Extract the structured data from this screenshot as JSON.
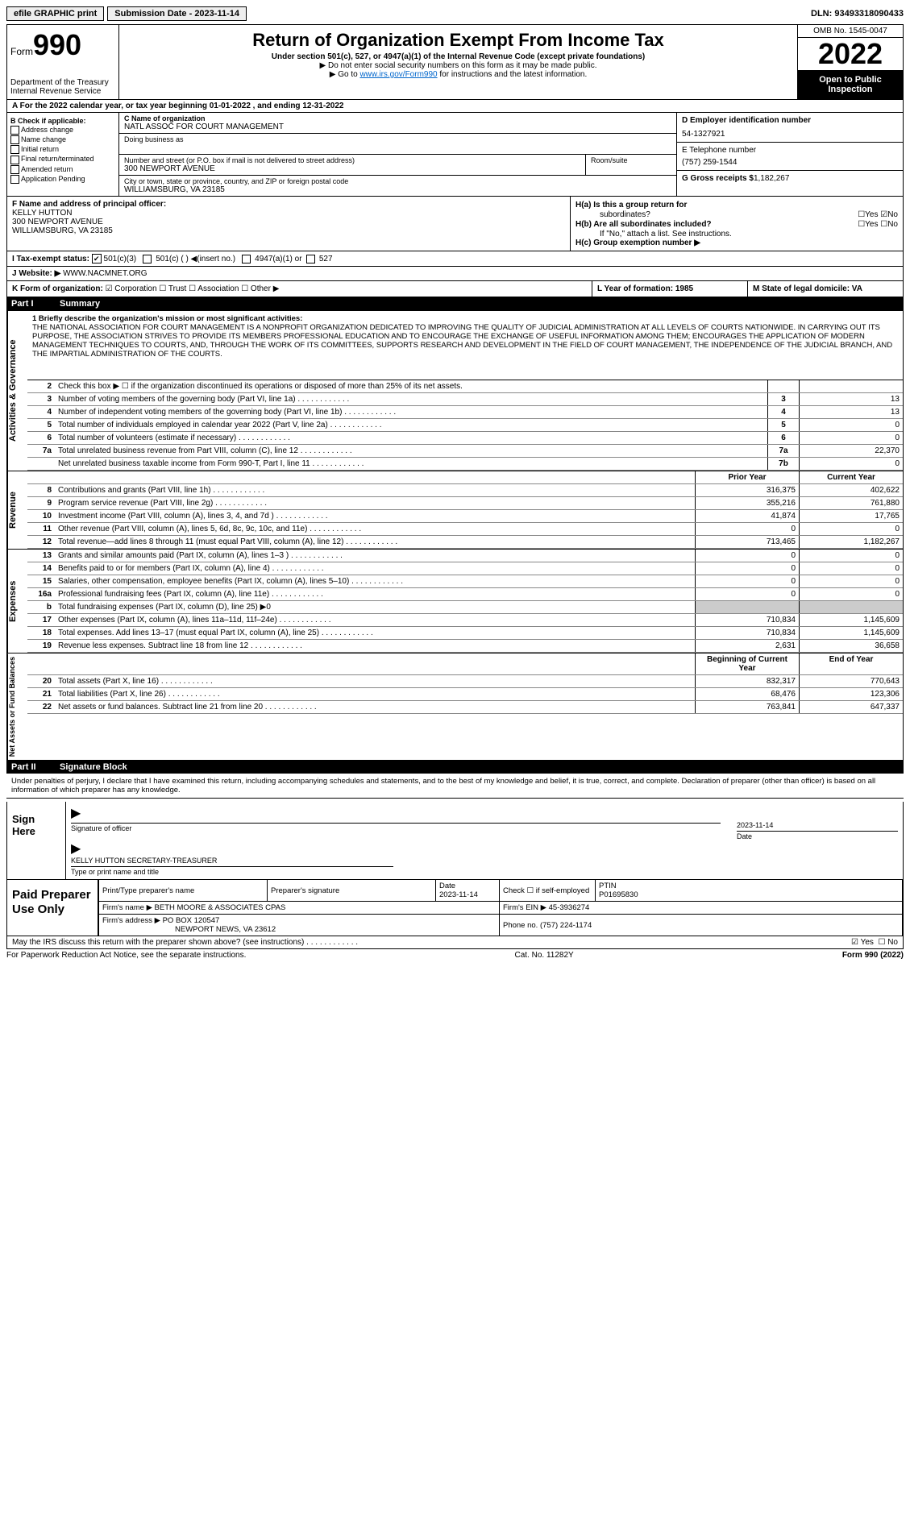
{
  "topbar": {
    "efile_label": "efile GRAPHIC print",
    "submission_label": "Submission Date - 2023-11-14",
    "dln": "DLN: 93493318090433"
  },
  "header": {
    "form_label": "Form",
    "form_number": "990",
    "dept": "Department of the Treasury",
    "irs": "Internal Revenue Service",
    "title": "Return of Organization Exempt From Income Tax",
    "subtitle": "Under section 501(c), 527, or 4947(a)(1) of the Internal Revenue Code (except private foundations)",
    "note1": "▶ Do not enter social security numbers on this form as it may be made public.",
    "note2_pre": "▶ Go to ",
    "note2_link": "www.irs.gov/Form990",
    "note2_post": " for instructions and the latest information.",
    "omb": "OMB No. 1545-0047",
    "year": "2022",
    "open_public": "Open to Public Inspection"
  },
  "row_a": "A For the 2022 calendar year, or tax year beginning 01-01-2022   , and ending 12-31-2022",
  "section_b": {
    "title": "B Check if applicable:",
    "items": [
      "Address change",
      "Name change",
      "Initial return",
      "Final return/terminated",
      "Amended return",
      "Application Pending"
    ]
  },
  "section_c": {
    "name_label": "C Name of organization",
    "name": "NATL ASSOC FOR COURT MANAGEMENT",
    "dba_label": "Doing business as",
    "dba": "",
    "addr_label": "Number and street (or P.O. box if mail is not delivered to street address)",
    "addr": "300 NEWPORT AVENUE",
    "room_label": "Room/suite",
    "room": "",
    "city_label": "City or town, state or province, country, and ZIP or foreign postal code",
    "city": "WILLIAMSBURG, VA  23185"
  },
  "section_d": {
    "ein_label": "D Employer identification number",
    "ein": "54-1327921",
    "phone_label": "E Telephone number",
    "phone": "(757) 259-1544",
    "gross_label": "G Gross receipts $",
    "gross": "1,182,267"
  },
  "section_f": {
    "label": "F Name and address of principal officer:",
    "name": "KELLY HUTTON",
    "addr1": "300 NEWPORT AVENUE",
    "addr2": "WILLIAMSBURG, VA  23185"
  },
  "section_h": {
    "ha_label": "H(a)  Is this a group return for",
    "ha_sub": "subordinates?",
    "no_checked": "☑No",
    "yes_unchecked": "☐Yes",
    "hb_label": "H(b)  Are all subordinates included?",
    "hb_yn": "☐Yes  ☐No",
    "hb_note": "If \"No,\" attach a list. See instructions.",
    "hc_label": "H(c)  Group exemption number ▶"
  },
  "section_i": {
    "label": "I  Tax-exempt status:",
    "opt1": "501(c)(3)",
    "opt2": "501(c) (  ) ◀(insert no.)",
    "opt3": "4947(a)(1) or",
    "opt4": "527"
  },
  "section_j": {
    "label": "J Website: ▶",
    "value": "WWW.NACMNET.ORG"
  },
  "section_k": {
    "label": "K Form of organization:",
    "opts": "☑ Corporation  ☐ Trust  ☐ Association  ☐ Other ▶"
  },
  "section_l": {
    "label": "L Year of formation: 1985"
  },
  "section_m": {
    "label": "M State of legal domicile: VA"
  },
  "part1": {
    "header_pt": "Part I",
    "header_title": "Summary"
  },
  "side_labels": {
    "activities": "Activities & Governance",
    "revenue": "Revenue",
    "expenses": "Expenses",
    "netassets": "Net Assets or Fund Balances"
  },
  "mission": {
    "label": "1   Briefly describe the organization's mission or most significant activities:",
    "text": "THE NATIONAL ASSOCIATION FOR COURT MANAGEMENT IS A NONPROFIT ORGANIZATION DEDICATED TO IMPROVING THE QUALITY OF JUDICIAL ADMINISTRATION AT ALL LEVELS OF COURTS NATIONWIDE. IN CARRYING OUT ITS PURPOSE, THE ASSOCIATION STRIVES TO PROVIDE ITS MEMBERS PROFESSIONAL EDUCATION AND TO ENCOURAGE THE EXCHANGE OF USEFUL INFORMATION AMONG THEM; ENCOURAGES THE APPLICATION OF MODERN MANAGEMENT TECHNIQUES TO COURTS, AND, THROUGH THE WORK OF ITS COMMITTEES, SUPPORTS RESEARCH AND DEVELOPMENT IN THE FIELD OF COURT MANAGEMENT, THE INDEPENDENCE OF THE JUDICIAL BRANCH, AND THE IMPARTIAL ADMINISTRATION OF THE COURTS."
  },
  "governance_rows": [
    {
      "n": "2",
      "desc": "Check this box ▶ ☐ if the organization discontinued its operations or disposed of more than 25% of its net assets.",
      "box": "",
      "val": ""
    },
    {
      "n": "3",
      "desc": "Number of voting members of the governing body (Part VI, line 1a)",
      "box": "3",
      "val": "13"
    },
    {
      "n": "4",
      "desc": "Number of independent voting members of the governing body (Part VI, line 1b)",
      "box": "4",
      "val": "13"
    },
    {
      "n": "5",
      "desc": "Total number of individuals employed in calendar year 2022 (Part V, line 2a)",
      "box": "5",
      "val": "0"
    },
    {
      "n": "6",
      "desc": "Total number of volunteers (estimate if necessary)",
      "box": "6",
      "val": "0"
    },
    {
      "n": "7a",
      "desc": "Total unrelated business revenue from Part VIII, column (C), line 12",
      "box": "7a",
      "val": "22,370"
    },
    {
      "n": "",
      "desc": "Net unrelated business taxable income from Form 990-T, Part I, line 11",
      "box": "7b",
      "val": "0"
    }
  ],
  "col_headers": {
    "prior": "Prior Year",
    "current": "Current Year",
    "begin": "Beginning of Current Year",
    "end": "End of Year"
  },
  "revenue_rows": [
    {
      "n": "8",
      "desc": "Contributions and grants (Part VIII, line 1h)",
      "prior": "316,375",
      "curr": "402,622"
    },
    {
      "n": "9",
      "desc": "Program service revenue (Part VIII, line 2g)",
      "prior": "355,216",
      "curr": "761,880"
    },
    {
      "n": "10",
      "desc": "Investment income (Part VIII, column (A), lines 3, 4, and 7d )",
      "prior": "41,874",
      "curr": "17,765"
    },
    {
      "n": "11",
      "desc": "Other revenue (Part VIII, column (A), lines 5, 6d, 8c, 9c, 10c, and 11e)",
      "prior": "0",
      "curr": "0"
    },
    {
      "n": "12",
      "desc": "Total revenue—add lines 8 through 11 (must equal Part VIII, column (A), line 12)",
      "prior": "713,465",
      "curr": "1,182,267"
    }
  ],
  "expense_rows": [
    {
      "n": "13",
      "desc": "Grants and similar amounts paid (Part IX, column (A), lines 1–3 )",
      "prior": "0",
      "curr": "0"
    },
    {
      "n": "14",
      "desc": "Benefits paid to or for members (Part IX, column (A), line 4)",
      "prior": "0",
      "curr": "0"
    },
    {
      "n": "15",
      "desc": "Salaries, other compensation, employee benefits (Part IX, column (A), lines 5–10)",
      "prior": "0",
      "curr": "0"
    },
    {
      "n": "16a",
      "desc": "Professional fundraising fees (Part IX, column (A), line 11e)",
      "prior": "0",
      "curr": "0"
    },
    {
      "n": "b",
      "desc": "Total fundraising expenses (Part IX, column (D), line 25) ▶0",
      "prior": "",
      "curr": "",
      "shade": true
    },
    {
      "n": "17",
      "desc": "Other expenses (Part IX, column (A), lines 11a–11d, 11f–24e)",
      "prior": "710,834",
      "curr": "1,145,609"
    },
    {
      "n": "18",
      "desc": "Total expenses. Add lines 13–17 (must equal Part IX, column (A), line 25)",
      "prior": "710,834",
      "curr": "1,145,609"
    },
    {
      "n": "19",
      "desc": "Revenue less expenses. Subtract line 18 from line 12",
      "prior": "2,631",
      "curr": "36,658"
    }
  ],
  "netasset_rows": [
    {
      "n": "20",
      "desc": "Total assets (Part X, line 16)",
      "prior": "832,317",
      "curr": "770,643"
    },
    {
      "n": "21",
      "desc": "Total liabilities (Part X, line 26)",
      "prior": "68,476",
      "curr": "123,306"
    },
    {
      "n": "22",
      "desc": "Net assets or fund balances. Subtract line 21 from line 20",
      "prior": "763,841",
      "curr": "647,337"
    }
  ],
  "part2": {
    "header_pt": "Part II",
    "header_title": "Signature Block"
  },
  "sig_text": "Under penalties of perjury, I declare that I have examined this return, including accompanying schedules and statements, and to the best of my knowledge and belief, it is true, correct, and complete. Declaration of preparer (other than officer) is based on all information of which preparer has any knowledge.",
  "sign_here": {
    "label": "Sign Here",
    "sig_of_officer": "Signature of officer",
    "date_label": "Date",
    "date": "2023-11-14",
    "name": "KELLY HUTTON  SECRETARY-TREASURER",
    "type_label": "Type or print name and title"
  },
  "paid_prep": {
    "label": "Paid Preparer Use Only",
    "print_name_label": "Print/Type preparer's name",
    "print_name": "",
    "prep_sig_label": "Preparer's signature",
    "date_label": "Date",
    "date": "2023-11-14",
    "check_label": "Check ☐ if self-employed",
    "ptin_label": "PTIN",
    "ptin": "P01695830",
    "firm_name_label": "Firm's name    ▶",
    "firm_name": "BETH MOORE & ASSOCIATES CPAS",
    "firm_ein_label": "Firm's EIN ▶",
    "firm_ein": "45-3936274",
    "firm_addr_label": "Firm's address ▶",
    "firm_addr1": "PO BOX 120547",
    "firm_addr2": "NEWPORT NEWS, VA  23612",
    "phone_label": "Phone no.",
    "phone": "(757) 224-1174"
  },
  "discuss": {
    "text": "May the IRS discuss this return with the preparer shown above? (see instructions)",
    "yes": "☑ Yes",
    "no": "☐ No"
  },
  "footer": {
    "left": "For Paperwork Reduction Act Notice, see the separate instructions.",
    "center": "Cat. No. 11282Y",
    "right": "Form 990 (2022)"
  }
}
